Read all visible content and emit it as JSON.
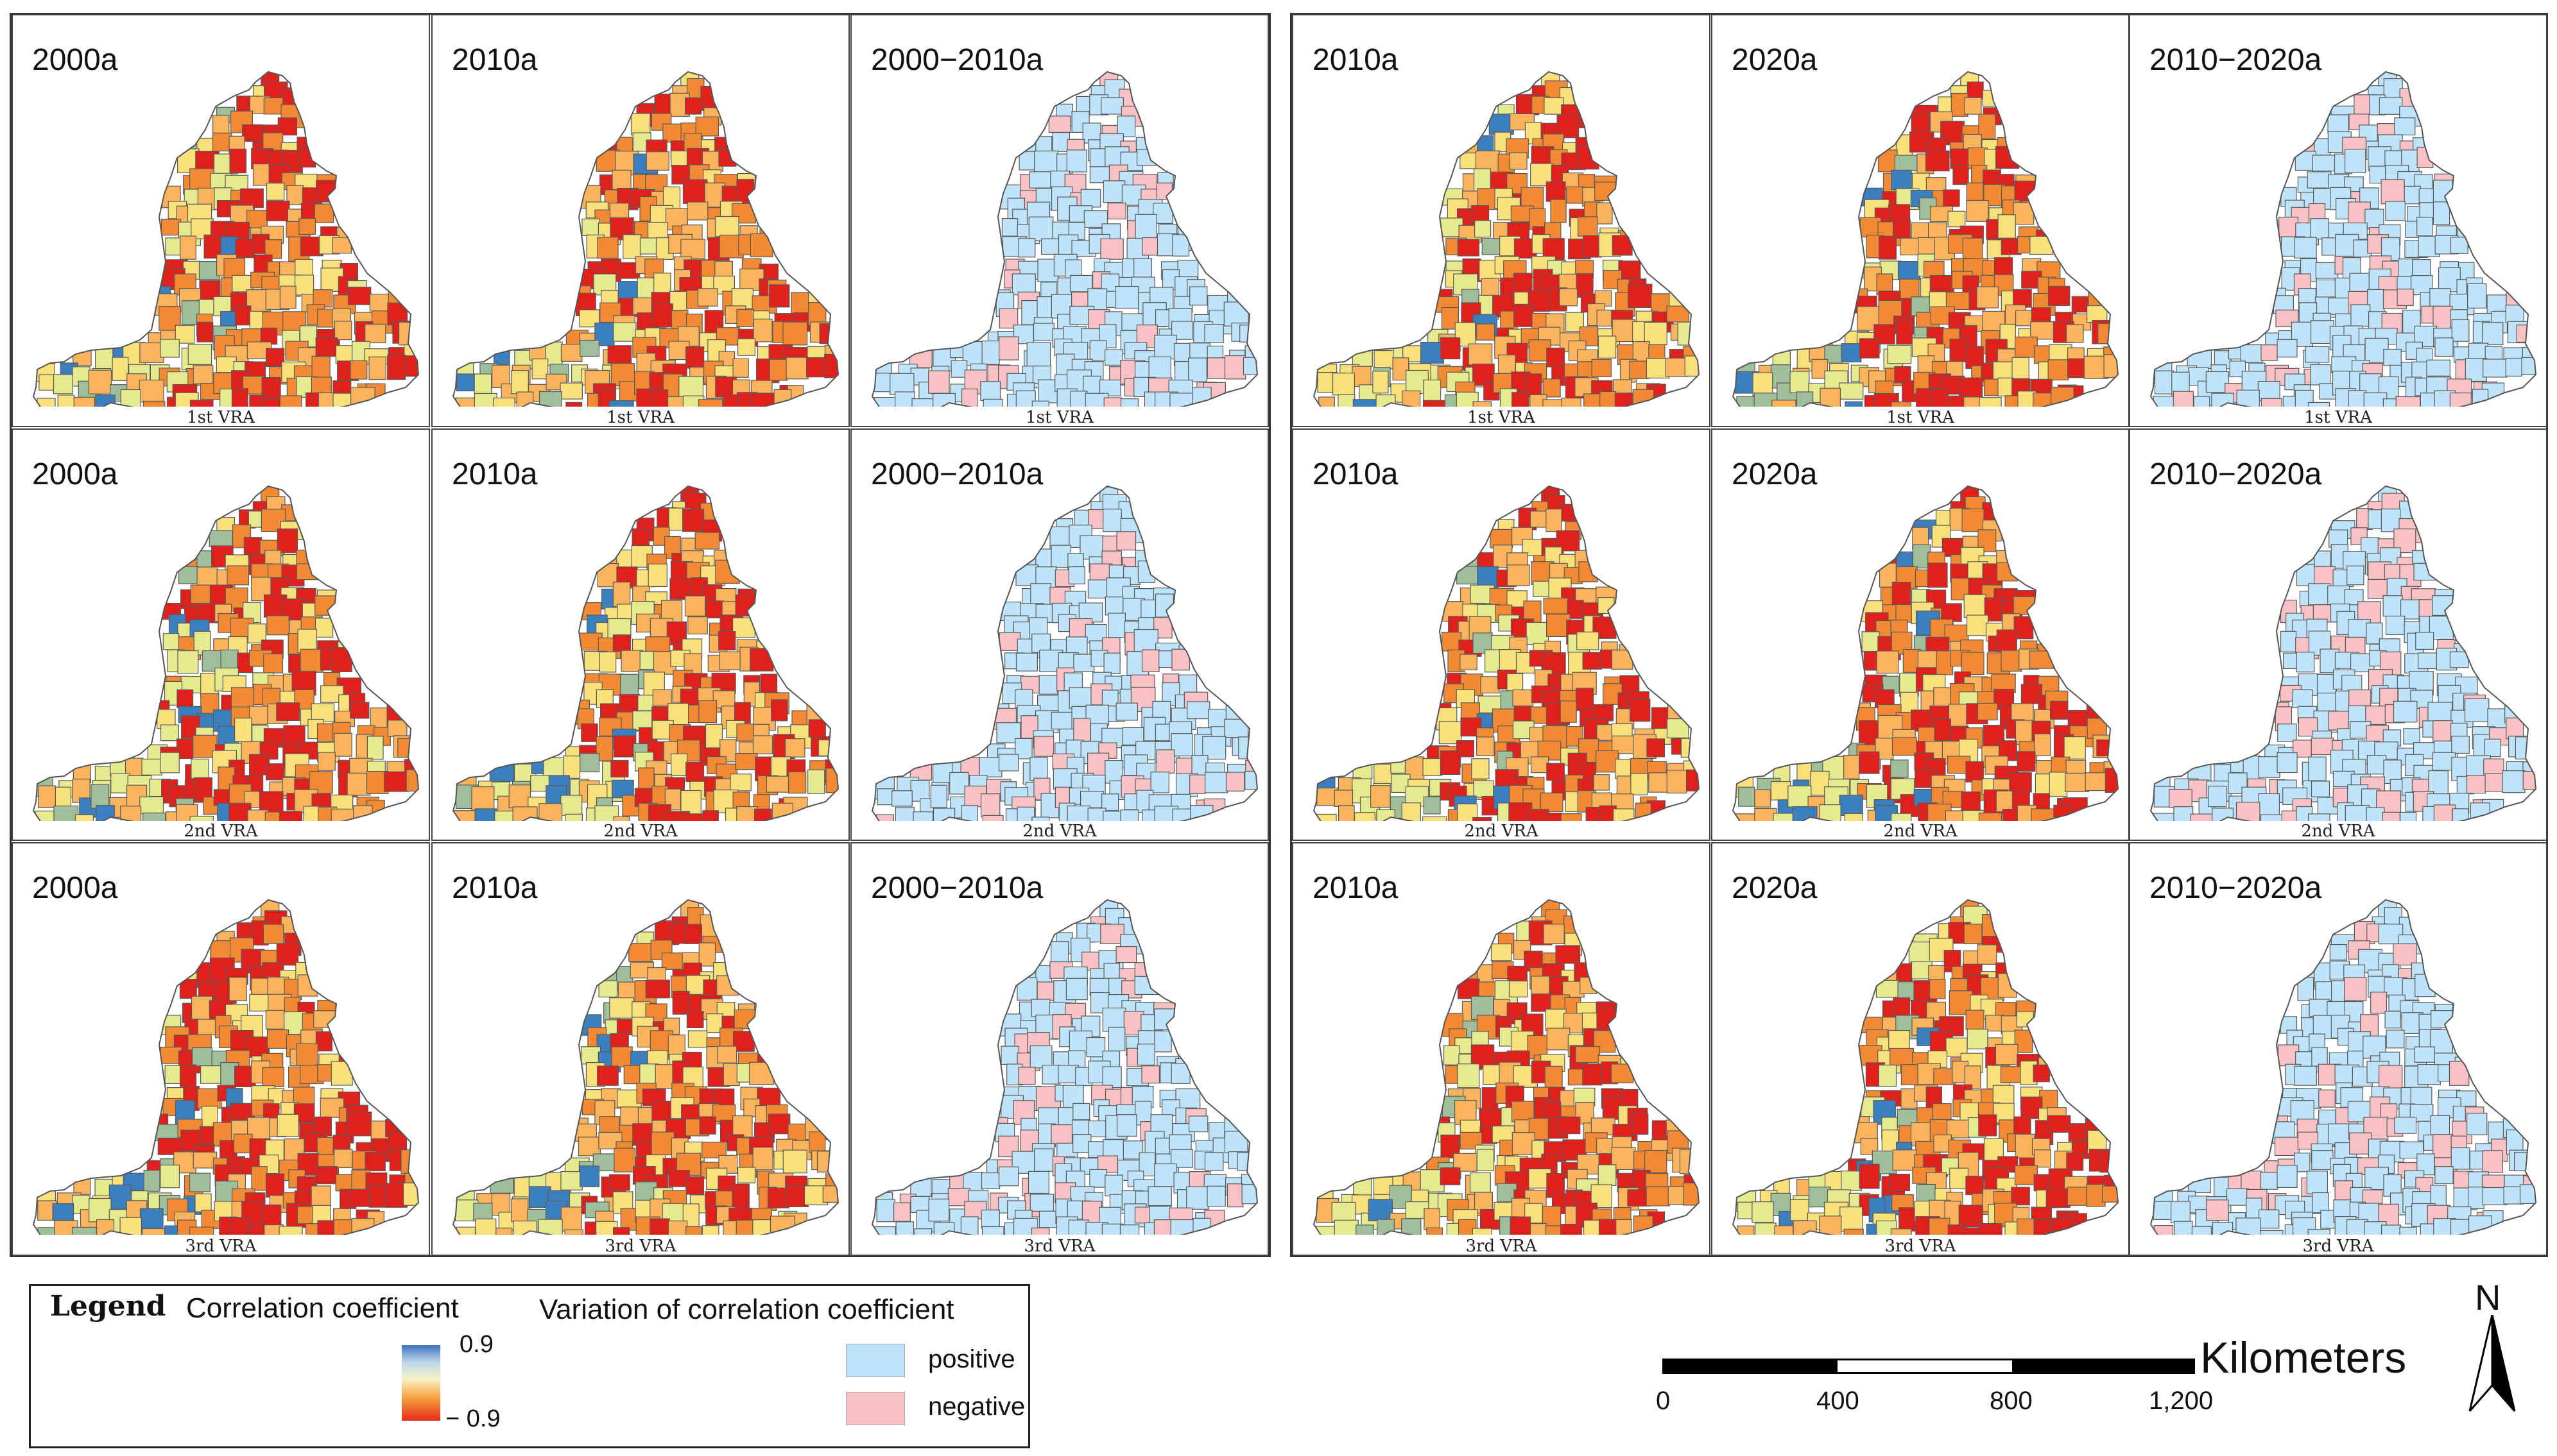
{
  "colors": {
    "ramp_high": "#3b72b8",
    "ramp_low": "#e32a1a",
    "positive": "#bfe3f8",
    "negative": "#f8c1c3",
    "boundary": "#5a5a5a"
  },
  "blocks": {
    "left": {
      "columns": [
        "2000a",
        "2010a",
        "2000−2010a"
      ],
      "column_kinds": [
        "corr",
        "corr",
        "diff"
      ]
    },
    "right": {
      "columns": [
        "2010a",
        "2020a",
        "2010−2020a"
      ],
      "column_kinds": [
        "corr",
        "corr",
        "diff"
      ]
    }
  },
  "rows": [
    "1st VRA",
    "2nd VRA",
    "3rd VRA"
  ],
  "legend": {
    "title": "Legend",
    "correlation_label": "Correlation coefficient",
    "variation_label": "Variation of correlation coefficient",
    "ramp_max": "0.9",
    "ramp_min": "− 0.9",
    "positive_label": "positive",
    "negative_label": "negative"
  },
  "scale": {
    "ticks": [
      "0",
      "400",
      "800",
      "1,200"
    ],
    "unit": "Kilometers",
    "north": "N"
  }
}
